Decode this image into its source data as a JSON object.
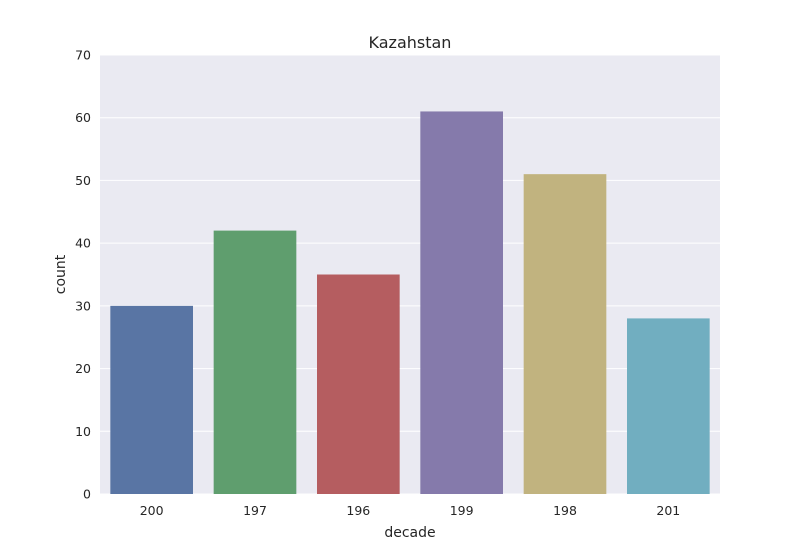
{
  "chart_data": {
    "type": "bar",
    "title": "Kazahstan",
    "xlabel": "decade",
    "ylabel": "count",
    "categories": [
      "200",
      "197",
      "196",
      "199",
      "198",
      "201"
    ],
    "values": [
      30,
      42,
      35,
      61,
      51,
      28
    ],
    "colors": [
      "#5975a4",
      "#5f9e6e",
      "#b55d60",
      "#857aab",
      "#c1b37f",
      "#71aec0"
    ],
    "ylim": [
      0,
      70
    ],
    "yticks": [
      "0",
      "10",
      "20",
      "30",
      "40",
      "50",
      "60",
      "70"
    ],
    "grid": true,
    "background_color": "#eaeaf2",
    "grid_color": "#ffffff"
  }
}
